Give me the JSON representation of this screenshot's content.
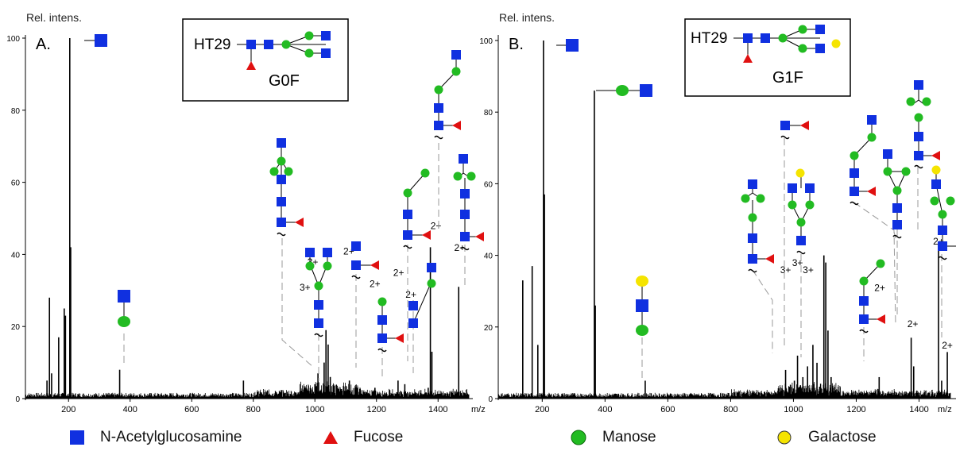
{
  "colors": {
    "glcnac": "#1030e0",
    "fucose": "#e01010",
    "mannose": "#22bb22",
    "galactose": "#f5e400",
    "spectrum": "#000000",
    "guide": "#999999"
  },
  "legend": [
    {
      "shape": "square",
      "color": "#1030e0",
      "label": "N-Acetylglucosamine"
    },
    {
      "shape": "triangle",
      "color": "#e01010",
      "label": "Fucose"
    },
    {
      "shape": "circle",
      "color": "#22bb22",
      "label": "Manose"
    },
    {
      "shape": "circle",
      "color": "#f5e400",
      "label": "Galactose"
    }
  ],
  "chart_data": [
    {
      "type": "line",
      "panel_label": "A.",
      "ylabel": "Rel. intens.",
      "xlabel": "m/z",
      "xlim": [
        60,
        1500
      ],
      "ylim": [
        0,
        100
      ],
      "x_ticks": [
        200,
        400,
        600,
        800,
        1000,
        1200,
        1400
      ],
      "y_ticks": [
        0,
        20,
        40,
        60,
        80,
        100
      ],
      "inset": {
        "sample": "HT29",
        "glycan": "G0F"
      },
      "peaks": [
        {
          "mz": 130,
          "intensity": 5
        },
        {
          "mz": 138,
          "intensity": 28
        },
        {
          "mz": 145,
          "intensity": 7
        },
        {
          "mz": 168,
          "intensity": 17
        },
        {
          "mz": 186,
          "intensity": 25
        },
        {
          "mz": 190,
          "intensity": 23
        },
        {
          "mz": 204,
          "intensity": 100
        },
        {
          "mz": 207,
          "intensity": 42
        },
        {
          "mz": 366,
          "intensity": 8
        },
        {
          "mz": 768,
          "intensity": 5
        },
        {
          "mz": 985,
          "intensity": 3
        },
        {
          "mz": 1000,
          "intensity": 4
        },
        {
          "mz": 1010,
          "intensity": 7
        },
        {
          "mz": 1030,
          "intensity": 10
        },
        {
          "mz": 1036,
          "intensity": 19
        },
        {
          "mz": 1043,
          "intensity": 15
        },
        {
          "mz": 1050,
          "intensity": 6
        },
        {
          "mz": 1112,
          "intensity": 5
        },
        {
          "mz": 1195,
          "intensity": 3
        },
        {
          "mz": 1270,
          "intensity": 5
        },
        {
          "mz": 1292,
          "intensity": 4
        },
        {
          "mz": 1368,
          "intensity": 3
        },
        {
          "mz": 1375,
          "intensity": 42
        },
        {
          "mz": 1380,
          "intensity": 13
        },
        {
          "mz": 1467,
          "intensity": 31
        }
      ],
      "charge_labels": [
        {
          "text": "3+",
          "mz": 993,
          "y": 37
        },
        {
          "text": "3+",
          "mz": 968,
          "y": 30
        },
        {
          "text": "2+",
          "mz": 1110,
          "y": 40
        },
        {
          "text": "2+",
          "mz": 1195,
          "y": 31
        },
        {
          "text": "2+",
          "mz": 1272,
          "y": 34
        },
        {
          "text": "2+",
          "mz": 1312,
          "y": 28
        },
        {
          "text": "2+",
          "mz": 1393,
          "y": 47
        },
        {
          "text": "2+",
          "mz": 1470,
          "y": 41
        }
      ]
    },
    {
      "type": "line",
      "panel_label": "B.",
      "ylabel": "Rel. intens.",
      "xlabel": "m/z",
      "xlim": [
        60,
        1500
      ],
      "ylim": [
        0,
        100
      ],
      "x_ticks": [
        200,
        400,
        600,
        800,
        1000,
        1200,
        1400
      ],
      "y_ticks": [
        0,
        20,
        40,
        60,
        80,
        100
      ],
      "inset": {
        "sample": "HT29",
        "glycan": "G1F"
      },
      "peaks": [
        {
          "mz": 138,
          "intensity": 33
        },
        {
          "mz": 168,
          "intensity": 37
        },
        {
          "mz": 186,
          "intensity": 15
        },
        {
          "mz": 204,
          "intensity": 100
        },
        {
          "mz": 207,
          "intensity": 57
        },
        {
          "mz": 366,
          "intensity": 86
        },
        {
          "mz": 369,
          "intensity": 26
        },
        {
          "mz": 528,
          "intensity": 5
        },
        {
          "mz": 975,
          "intensity": 8
        },
        {
          "mz": 1003,
          "intensity": 5
        },
        {
          "mz": 1013,
          "intensity": 12
        },
        {
          "mz": 1030,
          "intensity": 6
        },
        {
          "mz": 1045,
          "intensity": 9
        },
        {
          "mz": 1062,
          "intensity": 15
        },
        {
          "mz": 1075,
          "intensity": 10
        },
        {
          "mz": 1097,
          "intensity": 40
        },
        {
          "mz": 1103,
          "intensity": 38
        },
        {
          "mz": 1110,
          "intensity": 19
        },
        {
          "mz": 1120,
          "intensity": 6
        },
        {
          "mz": 1273,
          "intensity": 6
        },
        {
          "mz": 1375,
          "intensity": 17
        },
        {
          "mz": 1383,
          "intensity": 9
        },
        {
          "mz": 1462,
          "intensity": 42
        },
        {
          "mz": 1472,
          "intensity": 5
        },
        {
          "mz": 1490,
          "intensity": 13
        }
      ],
      "charge_labels": [
        {
          "text": "3+",
          "mz": 975,
          "y": 35
        },
        {
          "text": "3+",
          "mz": 1013,
          "y": 37
        },
        {
          "text": "3+",
          "mz": 1047,
          "y": 35
        },
        {
          "text": "2+",
          "mz": 1275,
          "y": 30
        },
        {
          "text": "2+",
          "mz": 1380,
          "y": 20
        },
        {
          "text": "2+",
          "mz": 1462,
          "y": 43
        },
        {
          "text": "2+",
          "mz": 1490,
          "y": 14
        }
      ]
    }
  ]
}
